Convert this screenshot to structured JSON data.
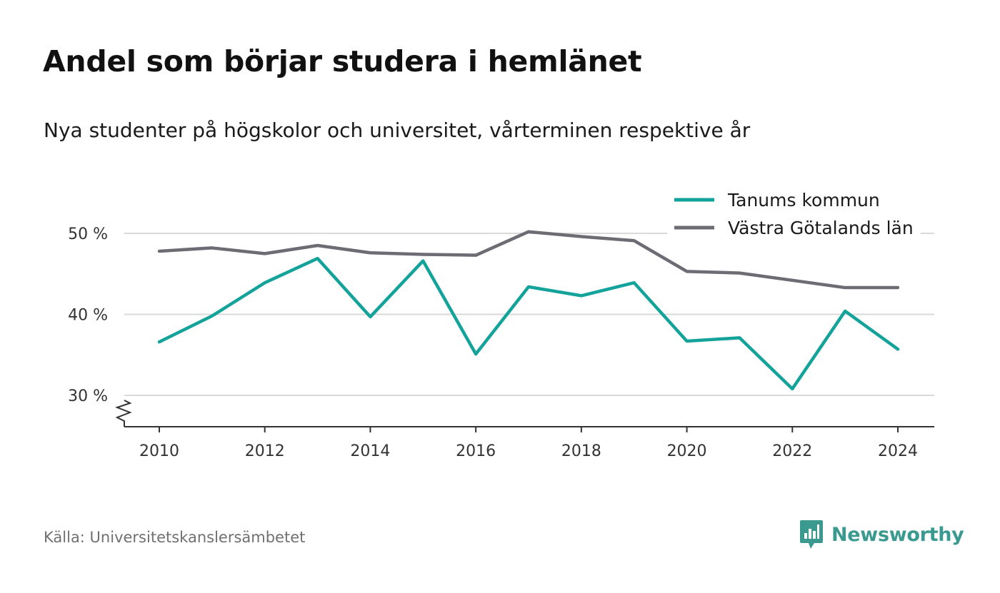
{
  "title": "Andel som börjar studera i hemlänet",
  "subtitle": "Nya studenter på högskolor och universitet, vårterminen respektive år",
  "source": "Källa: Universitetskanslersämbetet",
  "brand": {
    "name": "Newsworthy",
    "icon": "newsworthy-logo-icon",
    "color": "#3a9a8f"
  },
  "chart_data": {
    "type": "line",
    "x": [
      2010,
      2011,
      2012,
      2013,
      2014,
      2015,
      2016,
      2017,
      2018,
      2019,
      2020,
      2021,
      2022,
      2023,
      2024
    ],
    "x_ticks": [
      "2010",
      "2012",
      "2014",
      "2016",
      "2018",
      "2020",
      "2022",
      "2024"
    ],
    "y_ticks": [
      "30 %",
      "40 %",
      "50 %"
    ],
    "y_tick_values": [
      30,
      40,
      50
    ],
    "ylim": [
      26,
      54
    ],
    "xlim": [
      2009.3,
      2024.7
    ],
    "grid": true,
    "y_axis_break": true,
    "legend_position": "top-right",
    "series": [
      {
        "name": "Tanums kommun",
        "color": "#13a39a",
        "values": [
          36.6,
          39.8,
          43.9,
          46.9,
          39.7,
          46.6,
          35.1,
          43.4,
          42.3,
          43.9,
          36.7,
          37.1,
          30.8,
          40.4,
          35.7
        ]
      },
      {
        "name": "Västra Götalands län",
        "color": "#6d6b73",
        "values": [
          47.8,
          48.2,
          47.5,
          48.5,
          47.6,
          47.4,
          47.3,
          50.2,
          49.6,
          49.1,
          45.3,
          45.1,
          44.2,
          43.3,
          43.3
        ]
      }
    ]
  }
}
